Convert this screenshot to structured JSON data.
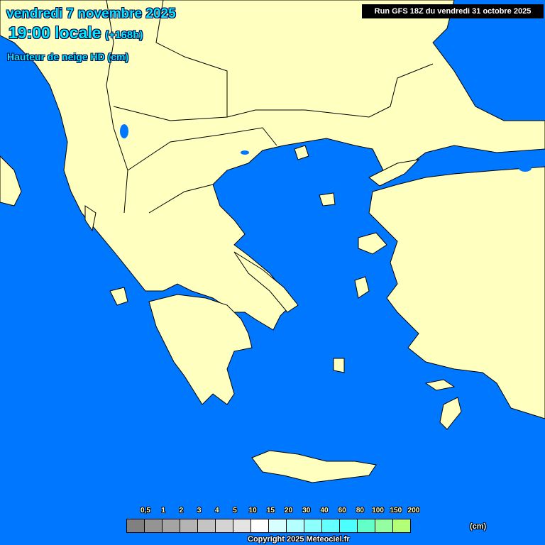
{
  "header": {
    "date": "vendredi 7 novembre 2025",
    "time": "19:00 locale",
    "lead": "(+168h)",
    "parameter": "Hauteur de neige HD (cm)",
    "run": "Run GFS 18Z du vendredi 31 octobre 2025"
  },
  "colors": {
    "sea": "#0077ff",
    "land": "#ffffc0",
    "border": "#000000"
  },
  "legend": {
    "labels": [
      "0,5",
      "1",
      "2",
      "3",
      "4",
      "5",
      "10",
      "15",
      "20",
      "30",
      "40",
      "60",
      "80",
      "100",
      "150",
      "200"
    ],
    "colors": [
      "#808080",
      "#949494",
      "#a4a4a4",
      "#b4b4b4",
      "#c4c4c4",
      "#d4d4d4",
      "#e4e4e4",
      "#ffffff",
      "#d8ffff",
      "#b4ffff",
      "#8cffff",
      "#64ffff",
      "#4cffff",
      "#64ffc8",
      "#94ffa0",
      "#b4ff78"
    ],
    "unit": "(cm)"
  },
  "footer": {
    "copyright": "Copyright 2025 Meteociel.fr"
  }
}
